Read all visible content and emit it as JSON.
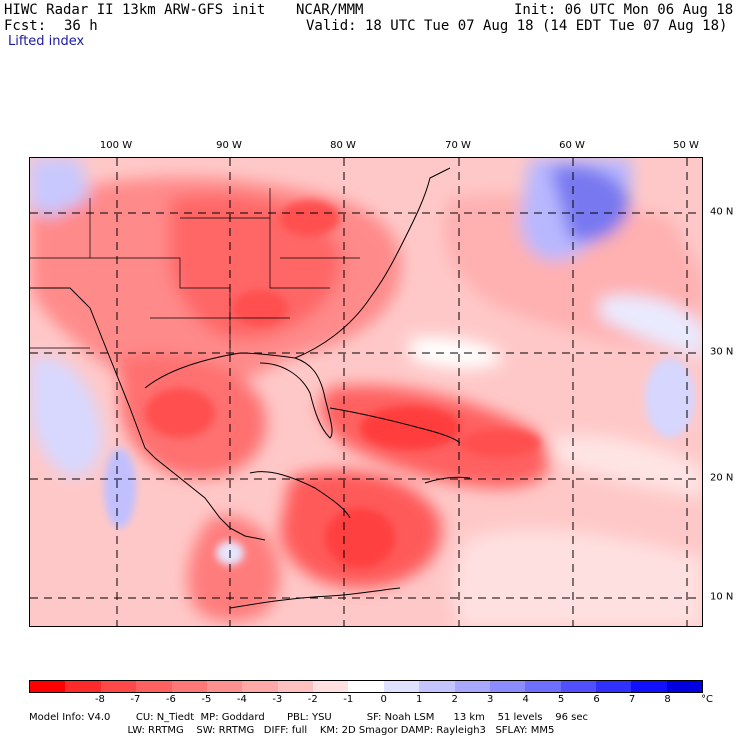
{
  "header": {
    "title": "HIWC Radar II 13km ARW-GFS init",
    "org": "NCAR/MMM",
    "init": "Init: 06 UTC Mon 06 Aug 18",
    "fcst_label": "Fcst:",
    "fcst_value": "36 h",
    "valid": "Valid: 18 UTC Tue 07 Aug 18 (14 EDT Tue 07 Aug 18)",
    "field": "Lifted index"
  },
  "map": {
    "longitude_labels": [
      "100 W",
      "90 W",
      "80 W",
      "70 W",
      "60 W",
      "50 W"
    ],
    "latitude_labels": [
      "40 N",
      "30 N",
      "20 N",
      "10 N"
    ]
  },
  "colorbar": {
    "unit": "°C",
    "tick_labels": [
      "-8",
      "-7",
      "-6",
      "-5",
      "-4",
      "-3",
      "-2",
      "-1",
      "0",
      "1",
      "2",
      "3",
      "4",
      "5",
      "6",
      "7",
      "8"
    ],
    "colors": [
      "#ff0000",
      "#ff2a2a",
      "#ff4848",
      "#ff6060",
      "#ff7878",
      "#ff9090",
      "#ffa8a8",
      "#ffc0c0",
      "#ffe0e0",
      "#ffffff",
      "#e0e0ff",
      "#c4c4ff",
      "#a8a8ff",
      "#8c8cff",
      "#6e6eff",
      "#5050ff",
      "#3030ff",
      "#1010ff",
      "#0000e0"
    ]
  },
  "model_info": {
    "line1": "Model Info: V4.0        CU: N_Tiedt  MP: Goddard       PBL: YSU           SF: Noah LSM      13 km    51 levels    96 sec",
    "line2": "                               LW: RRTMG    SW: RRTMG   DIFF: full    KM: 2D Smagor DAMP: Rayleigh3   SFLAY: MM5"
  }
}
